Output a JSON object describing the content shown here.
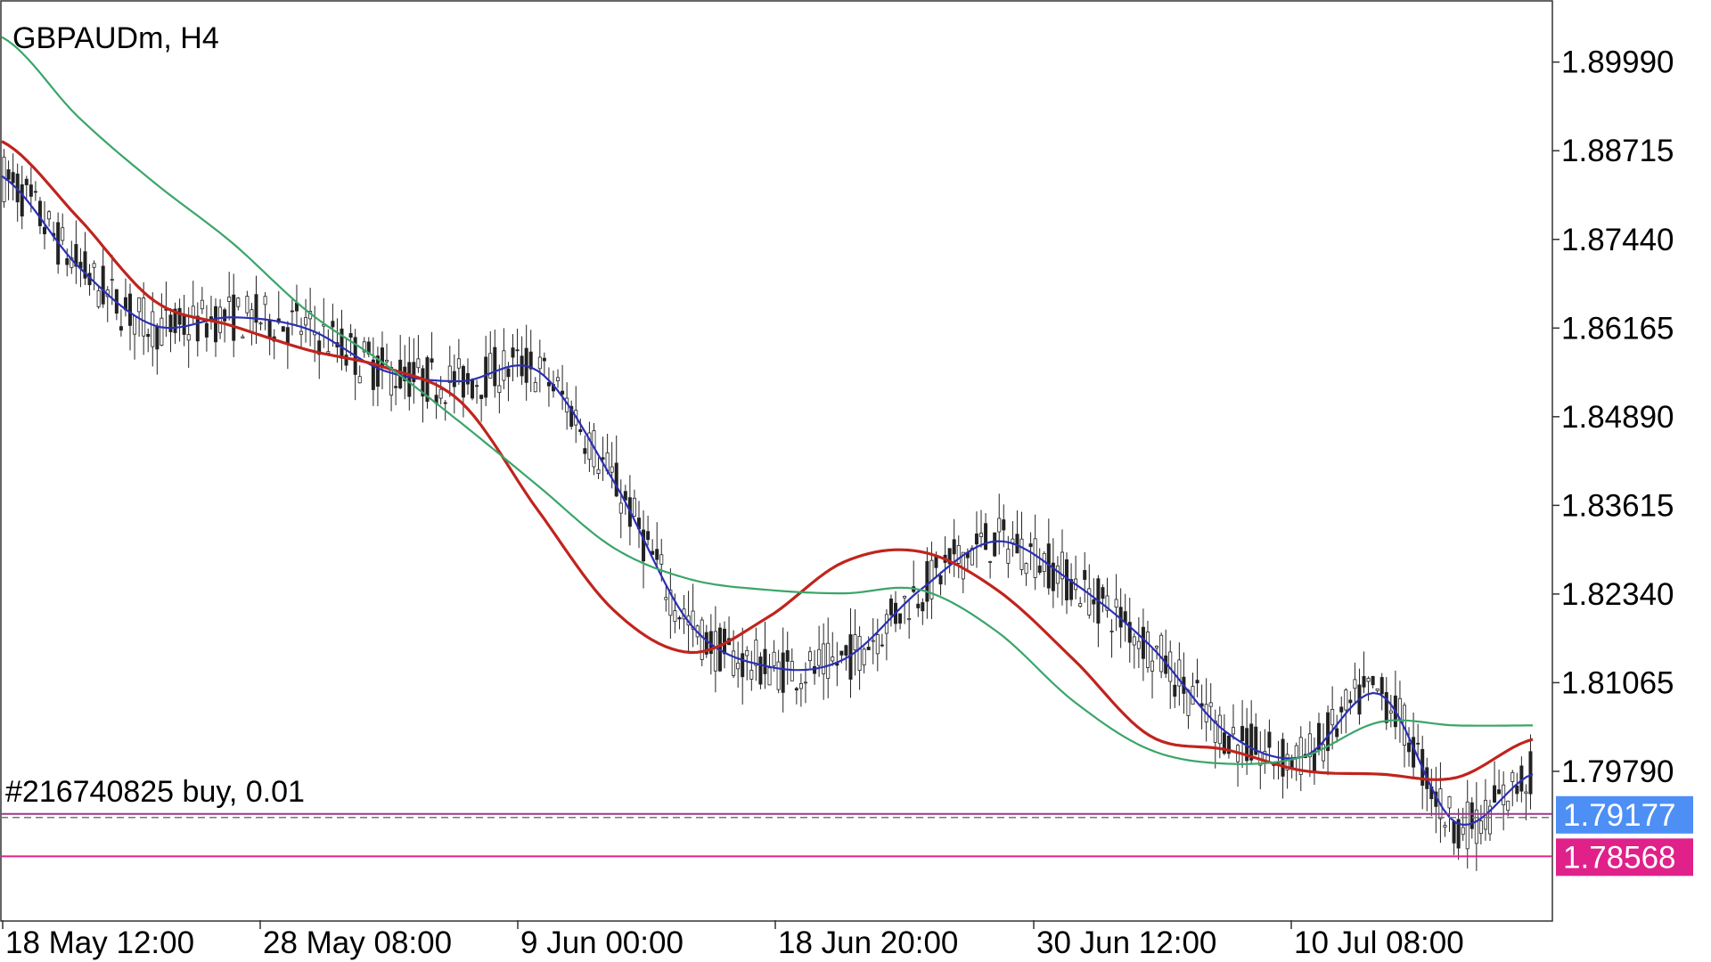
{
  "chart_data": {
    "type": "line",
    "title": "GBPAUDm, H4",
    "symbol": "GBPAUDm",
    "timeframe": "H4",
    "y_ticks": [
      "1.89990",
      "1.88715",
      "1.87440",
      "1.86165",
      "1.84890",
      "1.83615",
      "1.82340",
      "1.81065",
      "1.79790"
    ],
    "ylim": [
      1.7765,
      1.9087
    ],
    "x_ticks": [
      "18 May 12:00",
      "28 May 08:00",
      "9 Jun 00:00",
      "18 Jun 20:00",
      "30 Jun 12:00",
      "10 Jul 08:00"
    ],
    "order_label": "#216740825 buy, 0.01",
    "order_price": 1.79177,
    "current_price": {
      "label": "1.79177",
      "value": 1.79177,
      "color": "#4d8ff5"
    },
    "stop_price": {
      "label": "1.78568",
      "value": 1.78568,
      "color": "#e0218a"
    },
    "series": [
      {
        "color": "#2a2fb5",
        "x": [
          0,
          5,
          10,
          15,
          20,
          25,
          30,
          35,
          40,
          45,
          50,
          55,
          60,
          65,
          70,
          75,
          80,
          85,
          90,
          95,
          100
        ],
        "values": [
          1.8835,
          1.8705,
          1.862,
          1.8632,
          1.8615,
          1.8555,
          1.854,
          1.8555,
          1.8395,
          1.819,
          1.813,
          1.814,
          1.824,
          1.831,
          1.825,
          1.816,
          1.8035,
          1.8,
          1.809,
          1.7905,
          1.7975
        ]
      },
      {
        "color": "#c0241d",
        "x": [
          0,
          5,
          10,
          15,
          20,
          25,
          30,
          35,
          40,
          45,
          50,
          55,
          60,
          65,
          70,
          75,
          80,
          85,
          90,
          95,
          100
        ],
        "values": [
          1.8885,
          1.8775,
          1.8655,
          1.862,
          1.8585,
          1.856,
          1.851,
          1.8355,
          1.821,
          1.815,
          1.82,
          1.828,
          1.8295,
          1.824,
          1.814,
          1.803,
          1.801,
          1.798,
          1.7975,
          1.797,
          1.8025
        ]
      },
      {
        "color": "#3aa56a",
        "x": [
          0,
          5,
          10,
          15,
          20,
          25,
          30,
          35,
          40,
          45,
          50,
          55,
          60,
          65,
          70,
          75,
          80,
          85,
          90,
          95,
          100
        ],
        "values": [
          1.9035,
          1.892,
          1.8825,
          1.874,
          1.864,
          1.8565,
          1.848,
          1.839,
          1.83,
          1.8255,
          1.824,
          1.8235,
          1.824,
          1.818,
          1.808,
          1.801,
          1.799,
          1.8,
          1.805,
          1.8045,
          1.8045
        ]
      }
    ]
  }
}
